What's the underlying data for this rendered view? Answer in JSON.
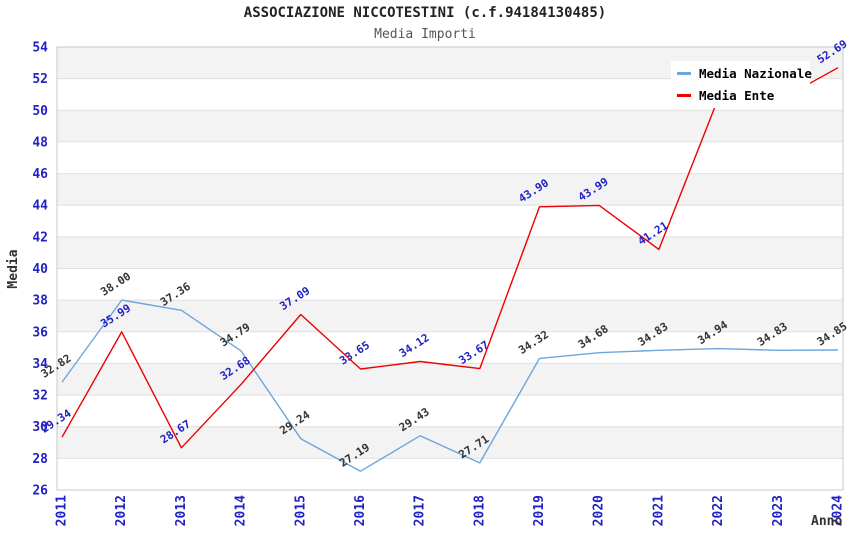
{
  "header": {
    "title": "ASSOCIAZIONE NICCOTESTINI (c.f.94184130485)",
    "subtitle": "Media Importi"
  },
  "axes": {
    "y_title": "Media",
    "x_title": "Anno",
    "tick_color": "#2222c4"
  },
  "legend": {
    "items": [
      {
        "label": "Media Nazionale",
        "color": "#6da6dc"
      },
      {
        "label": "Media Ente",
        "color": "#ee0000"
      }
    ]
  },
  "chart_data": {
    "type": "line",
    "title": "ASSOCIAZIONE NICCOTESTINI (c.f.94184130485)",
    "subtitle": "Media Importi",
    "xlabel": "Anno",
    "ylabel": "Media",
    "x": [
      2011,
      2012,
      2013,
      2014,
      2015,
      2016,
      2017,
      2018,
      2019,
      2020,
      2021,
      2022,
      2023,
      2024
    ],
    "series": [
      {
        "name": "Media Nazionale",
        "color": "#6da6dc",
        "label_color": "#333333",
        "values": [
          32.82,
          38.0,
          37.36,
          34.79,
          29.24,
          27.19,
          29.43,
          27.71,
          34.32,
          34.68,
          34.83,
          34.94,
          34.83,
          34.85
        ],
        "labels": [
          "32.82",
          "38.00",
          "37.36",
          "34.79",
          "29.24",
          "27.19",
          "29.43",
          "27.71",
          "34.32",
          "34.68",
          "34.83",
          "34.94",
          "34.83",
          "34.85"
        ]
      },
      {
        "name": "Media Ente",
        "color": "#ee0000",
        "label_color": "#2222c4",
        "values": [
          29.34,
          35.99,
          28.67,
          32.68,
          37.09,
          33.65,
          34.12,
          33.67,
          43.9,
          43.99,
          41.21,
          50.8,
          50.6,
          52.69
        ],
        "labels": [
          "29.34",
          "35.99",
          "28.67",
          "32.68",
          "37.09",
          "33.65",
          "34.12",
          "33.67",
          "43.90",
          "43.99",
          "41.21",
          "",
          "",
          "52.69"
        ]
      }
    ],
    "ylim": [
      26,
      54
    ],
    "y_step": 2,
    "grid": true,
    "band_color": "#f3f3f3",
    "grid_color": "#e0e0e0",
    "border_color": "#c9c9c9",
    "legend_position": "top-right"
  }
}
